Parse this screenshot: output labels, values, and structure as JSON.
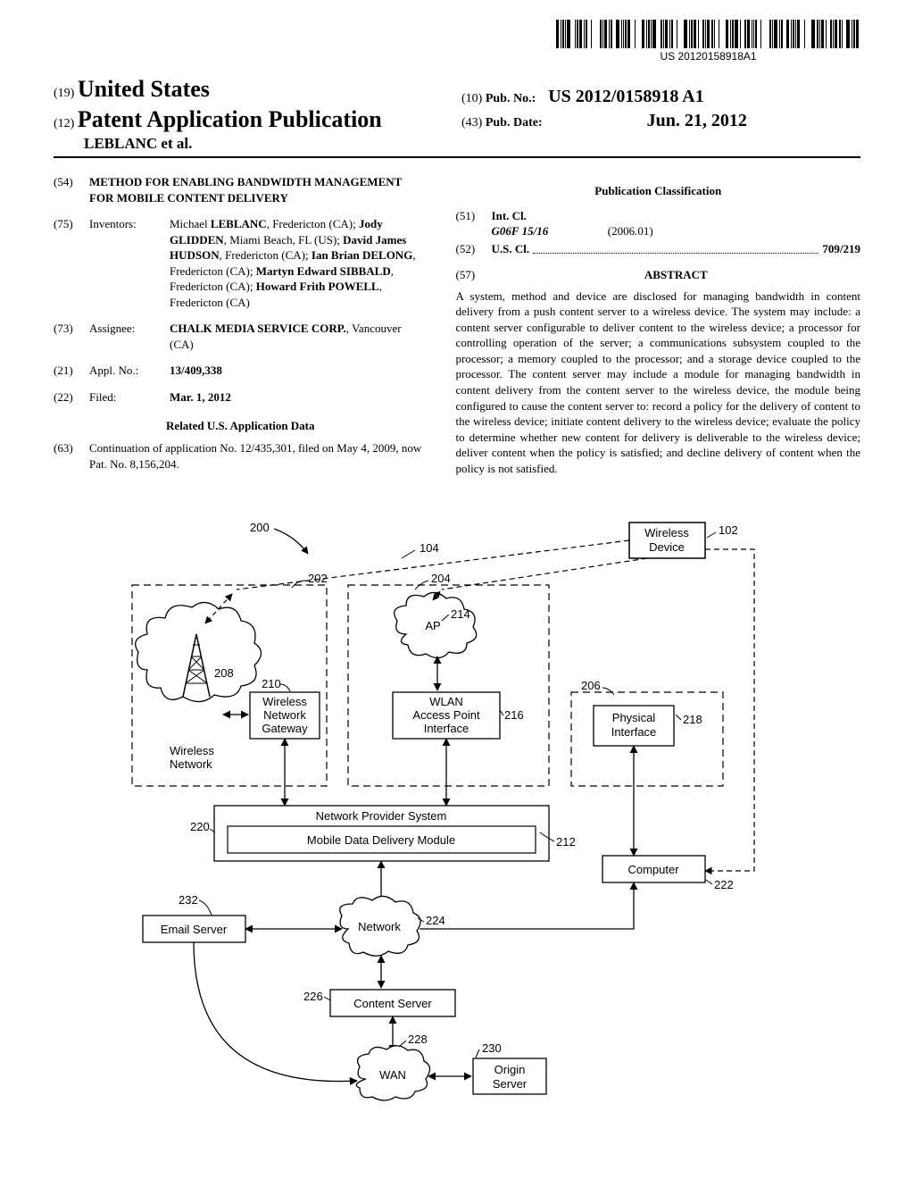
{
  "barcode_text": "US 20120158918A1",
  "header": {
    "num19": "(19)",
    "country": "United States",
    "num12": "(12)",
    "pap": "Patent Application Publication",
    "authors_line": "LEBLANC et al.",
    "num10": "(10)",
    "pubno_label": "Pub. No.:",
    "pubno": "US 2012/0158918 A1",
    "num43": "(43)",
    "pubdate_label": "Pub. Date:",
    "pubdate": "Jun. 21, 2012"
  },
  "left": {
    "f54_num": "(54)",
    "f54_title": "METHOD FOR ENABLING BANDWIDTH MANAGEMENT FOR MOBILE CONTENT DELIVERY",
    "f75_num": "(75)",
    "f75_label": "Inventors:",
    "inventors_html": "Michael <b>LEBLANC</b>, Fredericton (CA); <b>Jody GLIDDEN</b>, Miami Beach, FL (US); <b>David James HUDSON</b>, Fredericton (CA); <b>Ian Brian DELONG</b>, Fredericton (CA); <b>Martyn Edward SIBBALD</b>, Fredericton (CA); <b>Howard Frith POWELL</b>, Fredericton (CA)",
    "f73_num": "(73)",
    "f73_label": "Assignee:",
    "assignee_html": "<b>CHALK MEDIA SERVICE CORP.</b>, Vancouver (CA)",
    "f21_num": "(21)",
    "f21_label": "Appl. No.:",
    "f21_val": "13/409,338",
    "f22_num": "(22)",
    "f22_label": "Filed:",
    "f22_val": "Mar. 1, 2012",
    "related_heading": "Related U.S. Application Data",
    "f63_num": "(63)",
    "f63_text": "Continuation of application No. 12/435,301, filed on May 4, 2009, now Pat. No. 8,156,204."
  },
  "right": {
    "pubclass_heading": "Publication Classification",
    "f51_num": "(51)",
    "f51_label": "Int. Cl.",
    "intcl_code": "G06F 15/16",
    "intcl_date": "(2006.01)",
    "f52_num": "(52)",
    "f52_label": "U.S. Cl.",
    "uscl_val": "709/219",
    "f57_num": "(57)",
    "abstract_label": "ABSTRACT",
    "abstract_text": "A system, method and device are disclosed for managing bandwidth in content delivery from a push content server to a wireless device. The system may include: a content server configurable to deliver content to the wireless device; a processor for controlling operation of the server; a communications subsystem coupled to the processor; a memory coupled to the processor; and a storage device coupled to the processor. The content server may include a module for managing bandwidth in content delivery from the content server to the wireless device, the module being configured to cause the content server to: record a policy for the delivery of content to the wireless device; initiate content delivery to the wireless device; evaluate the policy to determine whether new content for delivery is deliverable to the wireless device; deliver content when the policy is satisfied; and decline delivery of content when the policy is not satisfied."
  },
  "diagram": {
    "ref_200": "200",
    "ref_104": "104",
    "ref_102": "102",
    "ref_202": "202",
    "ref_204": "204",
    "ref_214": "214",
    "ref_210": "210",
    "ref_208": "208",
    "ref_206": "206",
    "ref_216": "216",
    "ref_218": "218",
    "ref_220": "220",
    "ref_212": "212",
    "ref_222": "222",
    "ref_232": "232",
    "ref_224": "224",
    "ref_226": "226",
    "ref_228": "228",
    "ref_230": "230",
    "wireless_device": "Wireless\nDevice",
    "ap": "AP",
    "wireless_network_gateway": "Wireless\nNetwork\nGateway",
    "wireless_network": "Wireless\nNetwork",
    "wlan_access_point_interface": "WLAN\nAccess Point\nInterface",
    "physical_interface": "Physical\nInterface",
    "network_provider_system": "Network Provider System",
    "mobile_data_delivery_module": "Mobile Data Delivery Module",
    "computer": "Computer",
    "email_server": "Email Server",
    "network": "Network",
    "content_server": "Content Server",
    "wan": "WAN",
    "origin_server": "Origin\nServer",
    "colors": {
      "stroke": "#000000",
      "dash": "5,4"
    }
  }
}
